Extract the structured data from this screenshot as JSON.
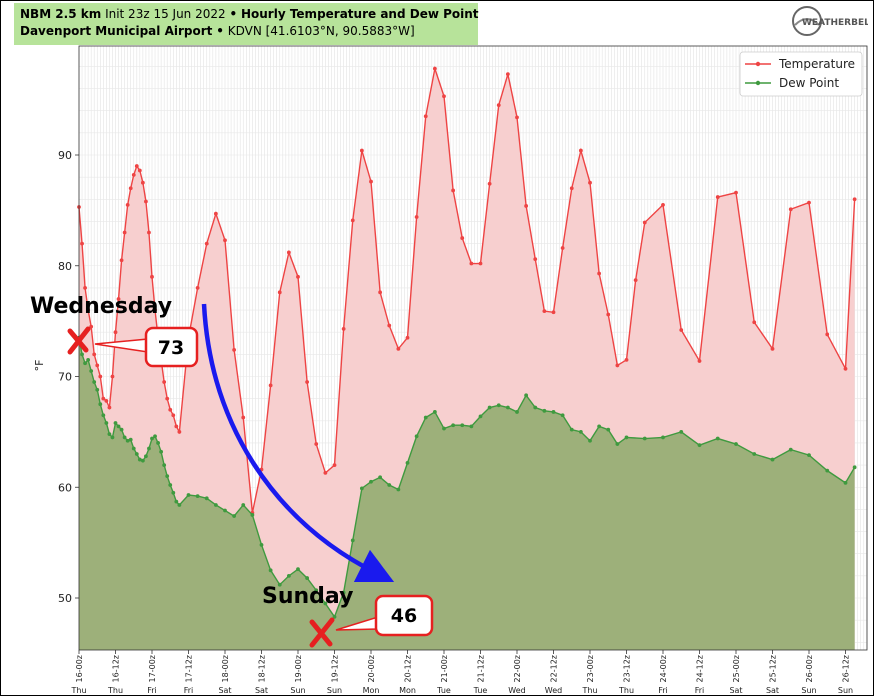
{
  "header": {
    "title_line1_bold": "NBM 2.5 km",
    "title_line1_init": "Init 23z 15 Jun 2022",
    "title_line1_sep": "•",
    "title_line1_product": "Hourly Temperature and Dew Point",
    "title_line2_station": "Davenport Municipal Airport",
    "title_line2_sep": "•",
    "title_line2_coords": "KDVN [41.6103°N, 90.5883°W]"
  },
  "logo": {
    "text": "WEATHERBELL"
  },
  "colors": {
    "temperature_line": "#ee4444",
    "temperature_fill": "#f7cfcf",
    "dewpoint_line": "#3f9a3f",
    "dewpoint_fill": "#9db07a",
    "title_bg": "#b7e39a",
    "arrow": "#1a1aee",
    "marker": "#e62020"
  },
  "chart_data": {
    "type": "area",
    "title": "Hourly Temperature and Dew Point",
    "xlabel": "",
    "ylabel": "°F",
    "ylim": [
      45,
      99
    ],
    "yticks": [
      50,
      60,
      70,
      80,
      90
    ],
    "grid": true,
    "legend_position": "top-right",
    "x_tick_labels": [
      "16-00z",
      "16-12z",
      "17-00z",
      "17-12z",
      "18-00z",
      "18-12z",
      "19-00z",
      "19-12z",
      "20-00z",
      "20-12z",
      "21-00z",
      "21-12z",
      "22-00z",
      "22-12z",
      "23-00z",
      "23-12z",
      "24-00z",
      "24-12z",
      "25-00z",
      "25-12z",
      "26-00z",
      "26-12z"
    ],
    "day_labels": [
      "Thu",
      "Thu",
      "Fri",
      "Fri",
      "Sat",
      "Sat",
      "Sun",
      "Sun",
      "Mon",
      "Mon",
      "Tue",
      "Tue",
      "Wed",
      "Wed",
      "Thu",
      "Thu",
      "Fri",
      "Fri",
      "Sat",
      "Sat",
      "Sun",
      "Sun"
    ],
    "x_hours_from_first_tick_unit": "hours",
    "series": [
      {
        "name": "Temperature",
        "points": [
          [
            0,
            85.3
          ],
          [
            1,
            82
          ],
          [
            2,
            78
          ],
          [
            3,
            76
          ],
          [
            4,
            74.5
          ],
          [
            5,
            72
          ],
          [
            6,
            71
          ],
          [
            7,
            70
          ],
          [
            8,
            68
          ],
          [
            9,
            67.8
          ],
          [
            10,
            67.2
          ],
          [
            11,
            70
          ],
          [
            12,
            74
          ],
          [
            13,
            77
          ],
          [
            14,
            80.5
          ],
          [
            15,
            83
          ],
          [
            16,
            85.5
          ],
          [
            17,
            87
          ],
          [
            18,
            88.2
          ],
          [
            19,
            89
          ],
          [
            20,
            88.6
          ],
          [
            21,
            87.5
          ],
          [
            22,
            85.8
          ],
          [
            23,
            83
          ],
          [
            24,
            79
          ],
          [
            25,
            76
          ],
          [
            26,
            73.5
          ],
          [
            27,
            71.5
          ],
          [
            28,
            69.5
          ],
          [
            29,
            68
          ],
          [
            30,
            67
          ],
          [
            31,
            66.5
          ],
          [
            32,
            65.5
          ],
          [
            33,
            65
          ],
          [
            36,
            73.5
          ],
          [
            39,
            78
          ],
          [
            42,
            82
          ],
          [
            45,
            84.7
          ],
          [
            48,
            82.3
          ],
          [
            51,
            72.4
          ],
          [
            54,
            66.3
          ],
          [
            57,
            57.7
          ],
          [
            60,
            61.6
          ],
          [
            63,
            69.2
          ],
          [
            66,
            77.6
          ],
          [
            69,
            81.2
          ],
          [
            72,
            79
          ],
          [
            75,
            69.5
          ],
          [
            78,
            63.9
          ],
          [
            81,
            61.3
          ],
          [
            84,
            62
          ],
          [
            87,
            74.3
          ],
          [
            90,
            84.1
          ],
          [
            93,
            90.4
          ],
          [
            96,
            87.6
          ],
          [
            99,
            77.6
          ],
          [
            102,
            74.6
          ],
          [
            105,
            72.5
          ],
          [
            108,
            73.5
          ],
          [
            111,
            84.4
          ],
          [
            114,
            93.5
          ],
          [
            117,
            97.8
          ],
          [
            120,
            95.3
          ],
          [
            123,
            86.8
          ],
          [
            126,
            82.5
          ],
          [
            129,
            80.2
          ],
          [
            132,
            80.2
          ],
          [
            135,
            87.4
          ],
          [
            138,
            94.5
          ],
          [
            141,
            97.3
          ],
          [
            144,
            93.4
          ],
          [
            147,
            85.4
          ],
          [
            150,
            80.6
          ],
          [
            153,
            75.9
          ],
          [
            156,
            75.8
          ],
          [
            159,
            81.6
          ],
          [
            162,
            87
          ],
          [
            165,
            90.4
          ],
          [
            168,
            87.5
          ],
          [
            171,
            79.3
          ],
          [
            174,
            75.6
          ],
          [
            177,
            71
          ],
          [
            180,
            71.5
          ],
          [
            183,
            78.7
          ],
          [
            186,
            83.9
          ],
          [
            192,
            85.5
          ],
          [
            198,
            74.2
          ],
          [
            204,
            71.4
          ],
          [
            210,
            86.2
          ],
          [
            216,
            86.6
          ],
          [
            222,
            74.9
          ],
          [
            228,
            72.5
          ],
          [
            234,
            85.1
          ],
          [
            240,
            85.7
          ],
          [
            246,
            73.8
          ],
          [
            252,
            70.7
          ],
          [
            255,
            86
          ]
        ]
      },
      {
        "name": "Dew Point",
        "points": [
          [
            0,
            73.5
          ],
          [
            1,
            72
          ],
          [
            2,
            71.2
          ],
          [
            3,
            71.5
          ],
          [
            4,
            70.5
          ],
          [
            5,
            69.5
          ],
          [
            6,
            68.8
          ],
          [
            7,
            67.5
          ],
          [
            8,
            66.5
          ],
          [
            9,
            65.8
          ],
          [
            10,
            64.8
          ],
          [
            11,
            64.5
          ],
          [
            12,
            65.8
          ],
          [
            13,
            65.5
          ],
          [
            14,
            65.2
          ],
          [
            15,
            64.5
          ],
          [
            16,
            64.2
          ],
          [
            17,
            64.3
          ],
          [
            18,
            63.5
          ],
          [
            19,
            63
          ],
          [
            20,
            62.5
          ],
          [
            21,
            62.4
          ],
          [
            22,
            62.8
          ],
          [
            23,
            63.5
          ],
          [
            24,
            64.4
          ],
          [
            25,
            64.6
          ],
          [
            26,
            64
          ],
          [
            27,
            63.2
          ],
          [
            28,
            62
          ],
          [
            29,
            61
          ],
          [
            30,
            60.2
          ],
          [
            31,
            59.5
          ],
          [
            32,
            58.7
          ],
          [
            33,
            58.4
          ],
          [
            36,
            59.3
          ],
          [
            39,
            59.2
          ],
          [
            42,
            59
          ],
          [
            45,
            58.4
          ],
          [
            48,
            57.9
          ],
          [
            51,
            57.4
          ],
          [
            54,
            58.4
          ],
          [
            57,
            57.5
          ],
          [
            60,
            54.8
          ],
          [
            63,
            52.5
          ],
          [
            66,
            51.2
          ],
          [
            69,
            52
          ],
          [
            72,
            52.6
          ],
          [
            75,
            51.8
          ],
          [
            78,
            50.7
          ],
          [
            81,
            49.5
          ],
          [
            84,
            48.3
          ],
          [
            87,
            50.5
          ],
          [
            90,
            55.2
          ],
          [
            93,
            59.9
          ],
          [
            96,
            60.5
          ],
          [
            99,
            60.9
          ],
          [
            102,
            60.2
          ],
          [
            105,
            59.8
          ],
          [
            108,
            62.2
          ],
          [
            111,
            64.6
          ],
          [
            114,
            66.3
          ],
          [
            117,
            66.8
          ],
          [
            120,
            65.3
          ],
          [
            123,
            65.6
          ],
          [
            126,
            65.6
          ],
          [
            129,
            65.5
          ],
          [
            132,
            66.4
          ],
          [
            135,
            67.2
          ],
          [
            138,
            67.4
          ],
          [
            141,
            67.2
          ],
          [
            144,
            66.8
          ],
          [
            147,
            68.3
          ],
          [
            150,
            67.2
          ],
          [
            153,
            66.9
          ],
          [
            156,
            66.8
          ],
          [
            159,
            66.5
          ],
          [
            162,
            65.2
          ],
          [
            165,
            65
          ],
          [
            168,
            64.2
          ],
          [
            171,
            65.5
          ],
          [
            174,
            65.2
          ],
          [
            177,
            63.9
          ],
          [
            180,
            64.5
          ],
          [
            186,
            64.4
          ],
          [
            192,
            64.5
          ],
          [
            198,
            65
          ],
          [
            204,
            63.8
          ],
          [
            210,
            64.4
          ],
          [
            216,
            63.9
          ],
          [
            222,
            63
          ],
          [
            228,
            62.5
          ],
          [
            234,
            63.4
          ],
          [
            240,
            62.9
          ],
          [
            246,
            61.5
          ],
          [
            252,
            60.4
          ],
          [
            255,
            61.8
          ]
        ]
      }
    ],
    "annotations": [
      {
        "label": "Wednesday",
        "value_label": "73"
      },
      {
        "label": "Sunday",
        "value_label": "46"
      }
    ]
  }
}
